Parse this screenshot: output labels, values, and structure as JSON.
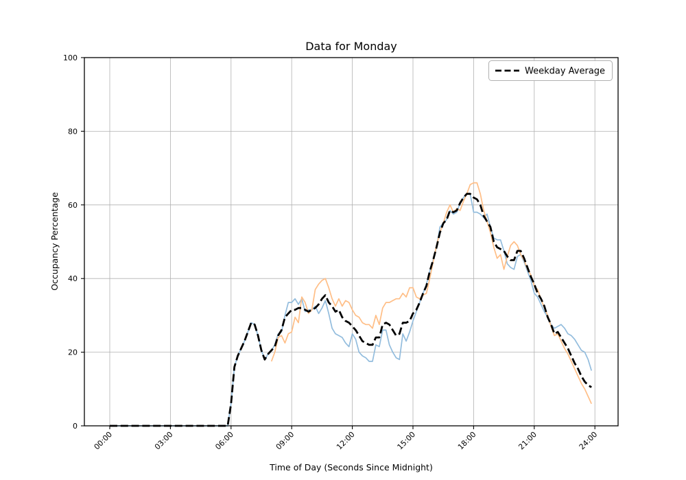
{
  "chart_data": {
    "type": "line",
    "title": "Data for Monday",
    "xlabel": "Time of Day (Seconds Since Midnight)",
    "ylabel": "Occupancy Percentage",
    "x_tick_labels": [
      "00:00",
      "03:00",
      "06:00",
      "09:00",
      "12:00",
      "15:00",
      "18:00",
      "21:00",
      "24:00"
    ],
    "x_tick_hours": [
      0,
      3,
      6,
      9,
      12,
      15,
      18,
      21,
      24
    ],
    "y_ticks": [
      0,
      20,
      40,
      60,
      80,
      100
    ],
    "ylim": [
      0,
      100
    ],
    "xlim_hours": [
      -1.2553,
      25.1488
    ],
    "grid": true,
    "grid_color": "#b0b0b0",
    "sample_interval_minutes": 10,
    "legend": {
      "position": "upper right",
      "entries": [
        {
          "label": "Weekday Average",
          "linestyle": "dashed",
          "color": "#000000"
        }
      ]
    },
    "series": [
      {
        "name": "monday-series-blue",
        "color": "#92bcdd",
        "linewidth": 1.7,
        "linestyle": "solid",
        "start_hour": 0,
        "values": [
          0,
          0,
          0,
          0,
          0,
          0,
          0,
          0,
          0,
          0,
          0,
          0,
          0,
          0,
          0,
          0,
          0,
          0,
          0,
          0,
          0,
          0,
          0,
          0,
          0,
          0,
          0,
          0,
          0,
          0,
          0,
          0,
          0,
          0,
          0,
          0,
          6,
          16,
          19,
          21,
          23,
          25.5,
          28,
          27.5,
          24.5,
          20.5,
          18,
          19.5,
          20.5,
          22,
          25,
          25.5,
          30,
          33.5,
          33.5,
          34.5,
          33,
          34.5,
          31,
          31.5,
          31.5,
          32.5,
          30.5,
          32,
          34,
          30.5,
          26.5,
          25,
          24.5,
          24,
          22.5,
          21.5,
          25,
          23.5,
          20,
          19,
          18.5,
          17.5,
          17.5,
          22,
          21.5,
          26,
          26,
          22,
          20,
          18.5,
          18,
          25,
          23,
          25.5,
          28.5,
          31,
          33.5,
          36,
          38.5,
          42,
          45,
          48.5,
          54,
          55,
          56,
          58.5,
          57.5,
          58,
          60.5,
          62,
          63,
          63,
          58,
          58,
          57.5,
          56.5,
          57.5,
          54,
          51,
          50.5,
          50.5,
          47.5,
          44,
          43,
          42.5,
          46,
          46.5,
          44.5,
          42,
          39.5,
          36,
          35,
          33,
          31,
          29.5,
          27.5,
          26.5,
          27,
          27.5,
          26.5,
          25,
          24.5,
          23.5,
          22,
          20.5,
          20,
          18,
          15
        ]
      },
      {
        "name": "monday-series-orange",
        "color": "#ffbe86",
        "linewidth": 1.7,
        "linestyle": "solid",
        "start_hour": 8,
        "values": [
          17.5,
          20,
          24,
          24.5,
          22.5,
          25,
          25.5,
          29.5,
          28,
          35,
          33.5,
          30.5,
          31.5,
          37,
          38.5,
          39.5,
          40,
          37.5,
          34.5,
          32.5,
          34.5,
          32.5,
          34,
          33.5,
          31.5,
          30,
          29.5,
          28,
          27.5,
          27.5,
          26.5,
          30,
          27.5,
          32,
          33.5,
          33.5,
          34,
          34.5,
          34.5,
          36,
          35,
          37.5,
          37.5,
          35,
          34.5,
          35.5,
          36,
          40,
          44.5,
          49,
          52.5,
          55,
          58,
          60,
          58,
          59,
          58.5,
          61,
          63,
          65.5,
          66,
          66,
          63,
          58.5,
          55.5,
          52.5,
          48.5,
          45.5,
          46.5,
          42.5,
          46,
          49,
          50,
          49,
          46.5,
          45,
          42.5,
          41,
          38,
          37,
          34.5,
          32,
          30,
          27,
          24.5,
          25,
          23,
          21,
          19.5,
          17.5,
          15.5,
          13.5,
          11.5,
          10,
          8,
          6
        ]
      },
      {
        "name": "weekday-average",
        "label": "Weekday Average",
        "color": "#000000",
        "linewidth": 2.8,
        "linestyle": "dashed",
        "start_hour": 0,
        "values": [
          0,
          0,
          0,
          0,
          0,
          0,
          0,
          0,
          0,
          0,
          0,
          0,
          0,
          0,
          0,
          0,
          0,
          0,
          0,
          0,
          0,
          0,
          0,
          0,
          0,
          0,
          0,
          0,
          0,
          0,
          0,
          0,
          0,
          0,
          0,
          0,
          6,
          16,
          19,
          21,
          23,
          25.5,
          28,
          27.5,
          24.5,
          20.5,
          18,
          19.5,
          20.5,
          21.5,
          24.5,
          26,
          29.5,
          30.5,
          31.5,
          31.5,
          32,
          32,
          31.5,
          31,
          31.5,
          32,
          33,
          34.5,
          35.5,
          33.5,
          32.5,
          31,
          31.5,
          29.5,
          28.5,
          28,
          27,
          26,
          24.5,
          23,
          22.5,
          22,
          22,
          24,
          24,
          27.5,
          28,
          27.5,
          26,
          24.5,
          25,
          28,
          28,
          28.5,
          30.5,
          31.5,
          33.5,
          36,
          38,
          42,
          45,
          48.5,
          52.5,
          55,
          56,
          58.5,
          58,
          58.5,
          60.5,
          62,
          63,
          63,
          62,
          61.5,
          60,
          57,
          55.5,
          54,
          50,
          48.5,
          48,
          47.5,
          46,
          45,
          45,
          47.5,
          47.5,
          45.5,
          43,
          40.5,
          38.5,
          36,
          34.5,
          32.5,
          29.5,
          27.5,
          25,
          25.5,
          24,
          22.5,
          21,
          19,
          17,
          15.5,
          13.5,
          12,
          11,
          10.5
        ]
      }
    ]
  }
}
